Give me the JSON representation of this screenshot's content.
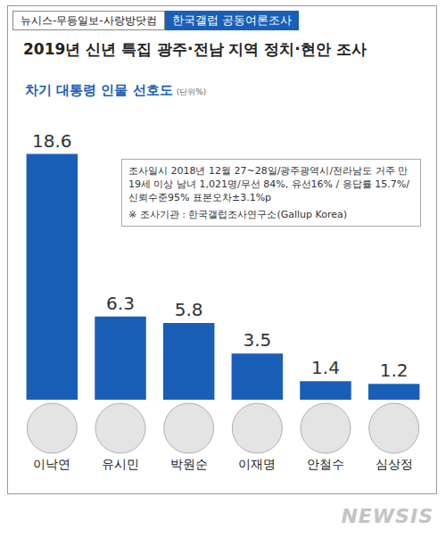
{
  "header": {
    "left": "뉴시스-무등일보-사랑방닷컴",
    "right": "한국갤럽 공동여론조사"
  },
  "note": {
    "text": "조사일시 2018년 12월 27~28일/광주광역시/전라남도 거주 만 19세 이상 남녀 1,021명/무선 84%, 유선16% / 응답률 15.7%/ 신뢰수준95% 표본오차±3.1%p",
    "source": "※ 조사기관 : 한국갤럽조사연구소(Gallup Korea)"
  },
  "watermark": "NEWSIS",
  "chart_data": {
    "type": "bar",
    "title": "2019년 신년 특집 광주·전남 지역 정치·현안 조사",
    "subtitle": "차기 대통령 인물 선호도",
    "unit": "(단위%)",
    "categories": [
      "이낙연",
      "유시민",
      "박원순",
      "이재명",
      "안철수",
      "심상정"
    ],
    "values": [
      18.6,
      6.3,
      5.8,
      3.5,
      1.4,
      1.2
    ],
    "color": "#1a5fb7",
    "data_labels": true,
    "tick_labels": "x",
    "grid": false
  }
}
